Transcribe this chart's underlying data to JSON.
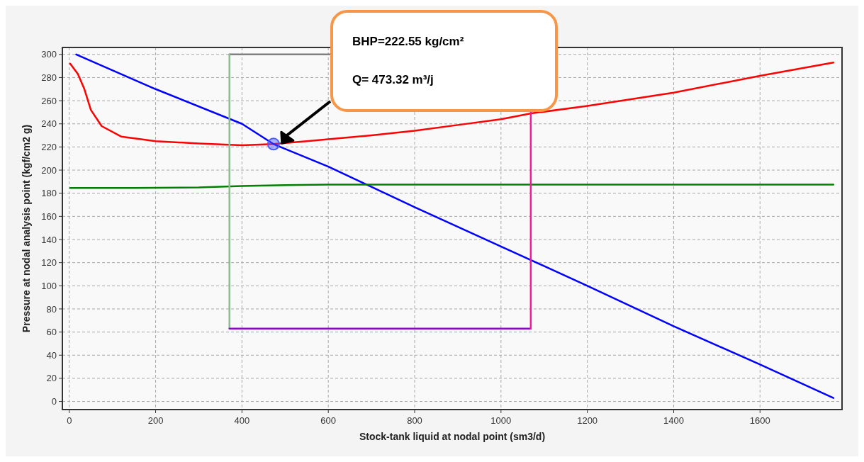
{
  "chart_data": {
    "type": "line",
    "xlabel": "Stock-tank liquid at nodal point (sm3/d)",
    "ylabel": "Pressure at nodal analysis point (kgf/cm2 g)",
    "xlim": [
      -16,
      1790
    ],
    "ylim": [
      -7,
      306
    ],
    "xticks": [
      0,
      200,
      400,
      600,
      800,
      1000,
      1200,
      1400,
      1600
    ],
    "yticks": [
      0,
      20,
      40,
      60,
      80,
      100,
      120,
      140,
      160,
      180,
      200,
      220,
      240,
      260,
      280,
      300
    ],
    "grid": true,
    "series": [
      {
        "color": "#ff0000",
        "x": [
          2,
          20,
          35,
          50,
          75,
          120,
          200,
          300,
          400,
          473,
          550,
          700,
          800,
          900,
          1000,
          1070,
          1200,
          1400,
          1600,
          1770
        ],
        "values": [
          292,
          283,
          270,
          252,
          238,
          229,
          225,
          223,
          221.5,
          222.5,
          225,
          230,
          234,
          239,
          244,
          249,
          255.5,
          267,
          281.5,
          293
        ]
      },
      {
        "color": "#0000ff",
        "x": [
          16,
          200,
          400,
          473,
          600,
          800,
          1000,
          1200,
          1400,
          1600,
          1770
        ],
        "values": [
          300,
          270,
          240,
          222.5,
          203,
          168,
          134,
          100,
          65,
          32,
          3
        ]
      },
      {
        "color": "#008000",
        "x": [
          2,
          150,
          300,
          400,
          500,
          600,
          1770
        ],
        "values": [
          184.5,
          184.5,
          185,
          186.2,
          187,
          187.5,
          187.5
        ]
      },
      {
        "color": "#808080",
        "x": [
          371,
          606
        ],
        "values": [
          300,
          300
        ]
      },
      {
        "color": "#8fbc8f",
        "x": [
          371,
          371
        ],
        "values": [
          63,
          300
        ]
      },
      {
        "color": "#9400d3",
        "x": [
          371,
          1069
        ],
        "values": [
          63,
          63
        ]
      },
      {
        "color": "#ff1493",
        "x": [
          1069,
          1069
        ],
        "values": [
          63,
          251
        ]
      },
      {
        "type": "scatter",
        "marker": "circle",
        "color": "#4a5cff",
        "x": [
          473
        ],
        "values": [
          222.5
        ]
      }
    ],
    "annotations": [
      "BHP=222.55 kg/cm²",
      "Q= 473.32 m³/j"
    ]
  }
}
